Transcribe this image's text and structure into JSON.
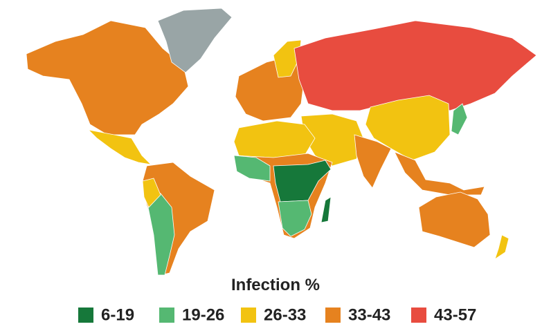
{
  "legend": {
    "title": "Infection %",
    "items": [
      {
        "label": "6-19",
        "color": "#16783a"
      },
      {
        "label": "19-26",
        "color": "#55b872"
      },
      {
        "label": "26-33",
        "color": "#f2c311"
      },
      {
        "label": "33-43",
        "color": "#e6821f"
      },
      {
        "label": "43-57",
        "color": "#e84c3f"
      }
    ]
  }
}
